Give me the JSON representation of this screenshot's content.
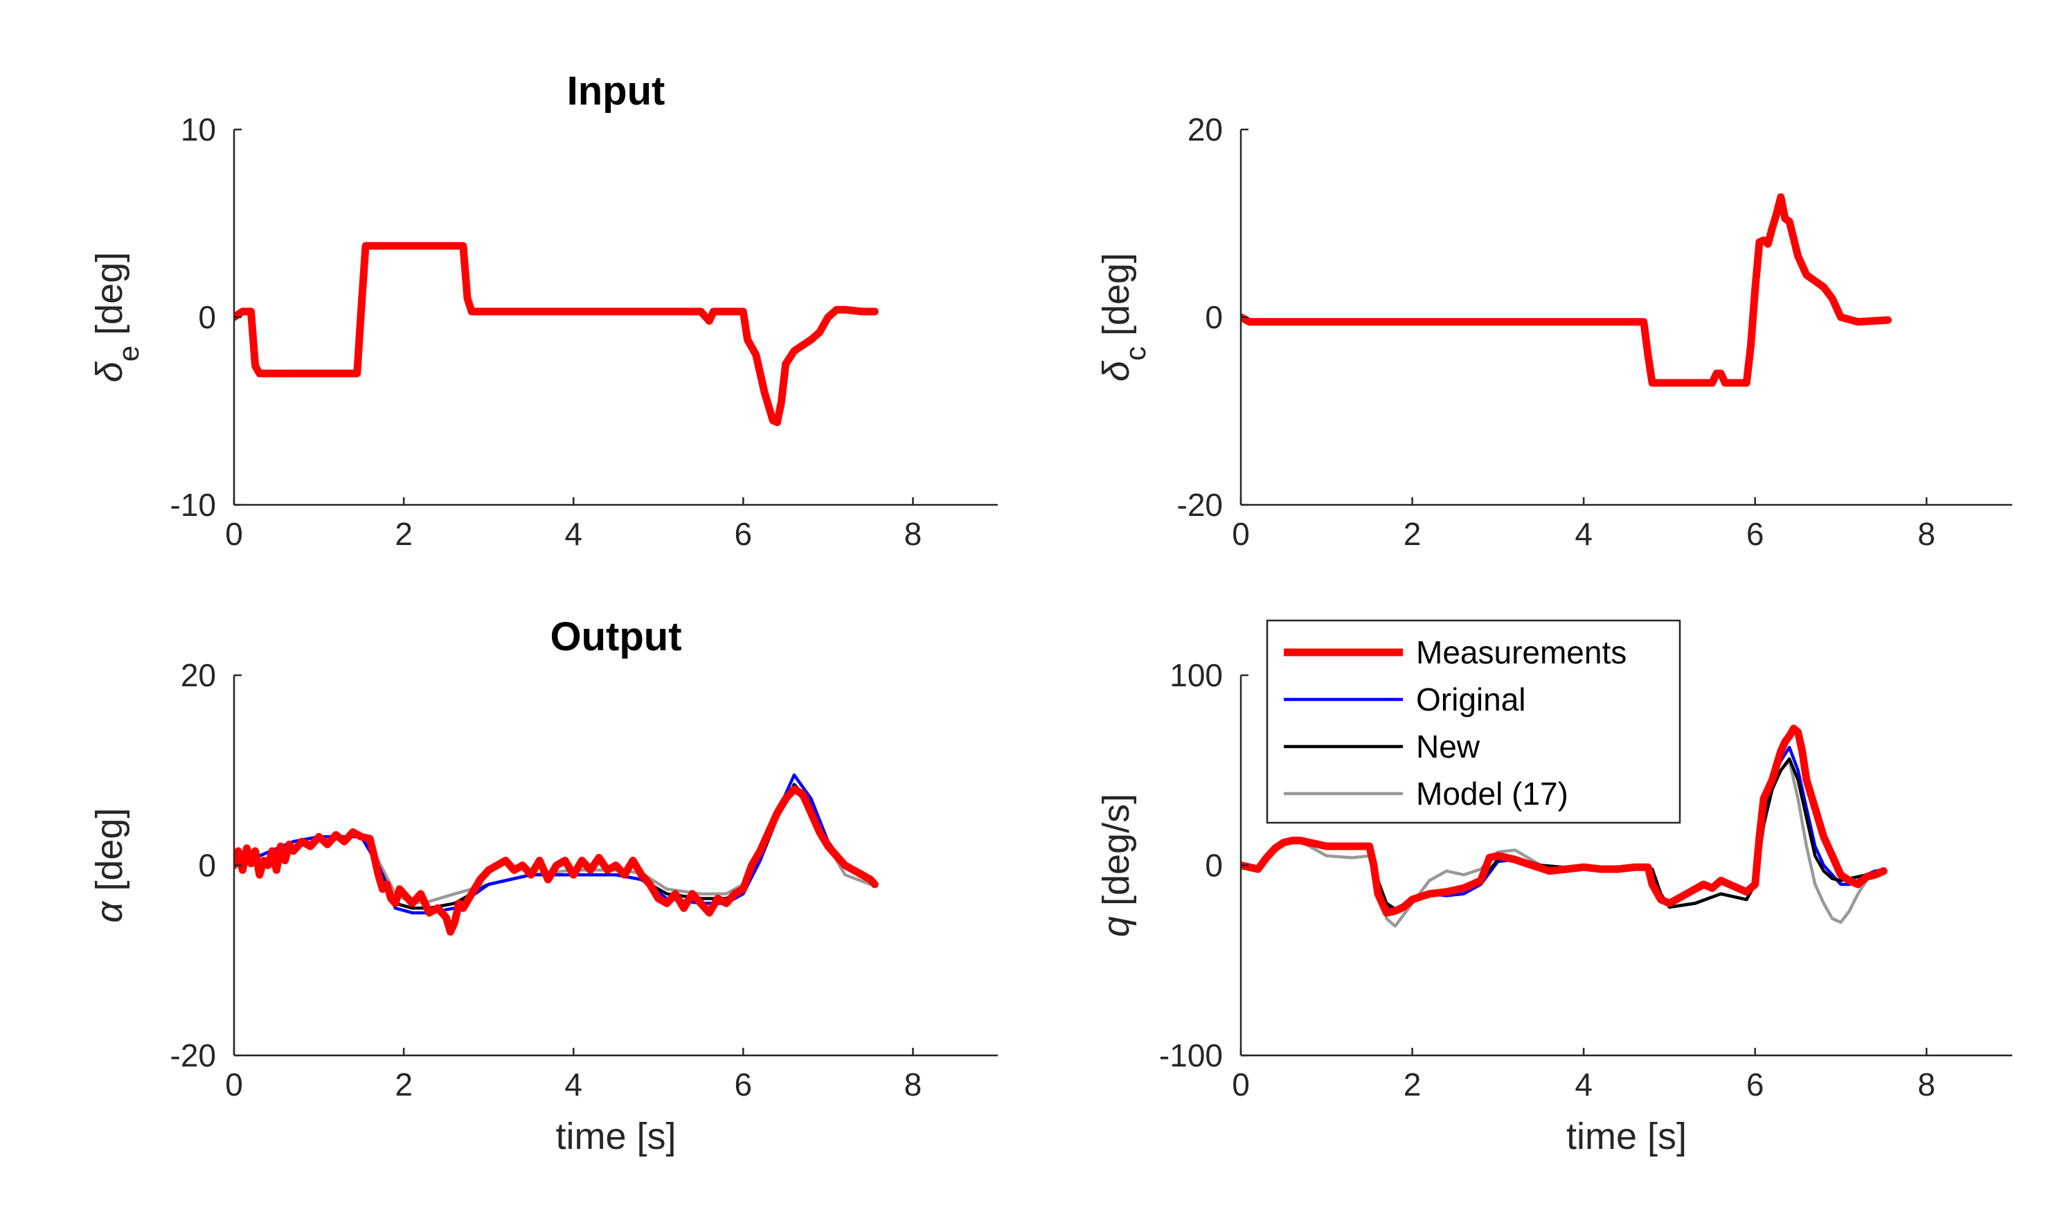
{
  "figure": {
    "xlabel": "time [s]",
    "legend": {
      "placement": "top-left of bottom-right panel",
      "entries": [
        {
          "name": "Measurements",
          "color": "#ff0000",
          "weight": "thick"
        },
        {
          "name": "Original",
          "color": "#0000ff",
          "weight": "thin"
        },
        {
          "name": "New",
          "color": "#000000",
          "weight": "thin"
        },
        {
          "name": "Model (17)",
          "color": "#999999",
          "weight": "thin"
        }
      ]
    }
  },
  "chart_data": [
    {
      "id": "de",
      "type": "line",
      "title": "Input",
      "ylabel_symbol": "δ",
      "ylabel_sub": "e",
      "ylabel_unit": " [deg]",
      "xlabel": "",
      "xlim": [
        0,
        9
      ],
      "ylim": [
        -10,
        10
      ],
      "xticks": [
        0,
        2,
        4,
        6,
        8
      ],
      "yticks": [
        -10,
        0,
        10
      ],
      "xtick_labels": [
        "0",
        "2",
        "4",
        "6",
        "8"
      ],
      "ytick_labels": [
        "-10",
        "0",
        "10"
      ],
      "series": [
        {
          "name": "Measurements",
          "color": "#ff0000",
          "weight": "thick",
          "x": [
            0,
            0.1,
            0.2,
            0.25,
            0.3,
            1.0,
            1.45,
            1.5,
            1.55,
            2.0,
            2.7,
            2.75,
            2.8,
            3.5,
            4.5,
            5.5,
            5.6,
            5.65,
            5.7,
            6.0,
            6.05,
            6.15,
            6.25,
            6.35,
            6.4,
            6.45,
            6.5,
            6.6,
            6.8,
            6.9,
            7.0,
            7.1,
            7.2,
            7.4,
            7.55
          ],
          "y": [
            0,
            0.3,
            0.3,
            -2.6,
            -3.0,
            -3.0,
            -3.0,
            0.5,
            3.8,
            3.8,
            3.8,
            1.0,
            0.3,
            0.3,
            0.3,
            0.3,
            -0.2,
            0.3,
            0.3,
            0.3,
            -1.2,
            -2.0,
            -4.0,
            -5.5,
            -5.6,
            -4.5,
            -2.5,
            -1.8,
            -1.2,
            -0.8,
            0.0,
            0.4,
            0.4,
            0.3,
            0.3
          ]
        }
      ]
    },
    {
      "id": "dc",
      "type": "line",
      "title": "",
      "ylabel_symbol": "δ",
      "ylabel_sub": "c",
      "ylabel_unit": " [deg]",
      "xlabel": "",
      "xlim": [
        0,
        9
      ],
      "ylim": [
        -20,
        20
      ],
      "xticks": [
        0,
        2,
        4,
        6,
        8
      ],
      "yticks": [
        -20,
        0,
        20
      ],
      "xtick_labels": [
        "0",
        "2",
        "4",
        "6",
        "8"
      ],
      "ytick_labels": [
        "-20",
        "0",
        "20"
      ],
      "series": [
        {
          "name": "Measurements",
          "color": "#ff0000",
          "weight": "thick",
          "x": [
            0,
            0.1,
            1.0,
            2.0,
            3.0,
            4.0,
            4.7,
            4.75,
            4.8,
            5.0,
            5.5,
            5.55,
            5.6,
            5.65,
            5.7,
            5.9,
            5.95,
            6.0,
            6.05,
            6.1,
            6.15,
            6.2,
            6.25,
            6.3,
            6.35,
            6.4,
            6.5,
            6.6,
            6.8,
            6.9,
            7.0,
            7.2,
            7.55
          ],
          "y": [
            0,
            -0.5,
            -0.5,
            -0.5,
            -0.5,
            -0.5,
            -0.5,
            -4.0,
            -7.0,
            -7.0,
            -7.0,
            -6.0,
            -6.0,
            -7.0,
            -7.0,
            -7.0,
            -3.0,
            3.0,
            8.0,
            8.2,
            7.8,
            9.5,
            11.0,
            12.8,
            10.5,
            10.2,
            6.5,
            4.5,
            3.2,
            2.0,
            0.0,
            -0.5,
            -0.3
          ]
        }
      ]
    },
    {
      "id": "alpha",
      "type": "line",
      "title": "Output",
      "ylabel_symbol": "α",
      "ylabel_sub": "",
      "ylabel_unit": " [deg]",
      "xlabel": "time [s]",
      "xlim": [
        0,
        9
      ],
      "ylim": [
        -20,
        20
      ],
      "xticks": [
        0,
        2,
        4,
        6,
        8
      ],
      "yticks": [
        -20,
        0,
        20
      ],
      "xtick_labels": [
        "0",
        "2",
        "4",
        "6",
        "8"
      ],
      "ytick_labels": [
        "-20",
        "0",
        "20"
      ],
      "series": [
        {
          "name": "Model (17)",
          "color": "#999999",
          "weight": "thin",
          "x": [
            0,
            0.3,
            0.7,
            1.0,
            1.5,
            1.7,
            1.9,
            2.1,
            2.3,
            2.6,
            3.0,
            3.5,
            4.0,
            4.5,
            4.8,
            5.1,
            5.5,
            5.8,
            6.0,
            6.2,
            6.4,
            6.6,
            6.8,
            7.0,
            7.2,
            7.5
          ],
          "y": [
            0,
            1.0,
            2.5,
            3.0,
            3.0,
            0.5,
            -3.0,
            -4.0,
            -3.8,
            -3.0,
            -2.0,
            -1.0,
            -0.5,
            -0.5,
            -0.8,
            -2.5,
            -3.0,
            -3.0,
            -2.0,
            1.0,
            5.0,
            8.0,
            6.0,
            2.0,
            -1.0,
            -2.0
          ]
        },
        {
          "name": "New",
          "color": "#000000",
          "weight": "thin",
          "x": [
            0,
            0.3,
            0.7,
            1.0,
            1.5,
            1.7,
            1.9,
            2.1,
            2.3,
            2.6,
            3.0,
            3.5,
            4.0,
            4.5,
            4.8,
            5.1,
            5.5,
            5.8,
            6.0,
            6.2,
            6.4,
            6.6,
            6.8,
            7.0,
            7.2,
            7.5
          ],
          "y": [
            0,
            1.0,
            2.5,
            3.0,
            3.0,
            0.0,
            -4.0,
            -4.5,
            -4.5,
            -4.0,
            -2.0,
            -1.0,
            -1.0,
            -1.0,
            -1.5,
            -3.0,
            -3.5,
            -3.5,
            -2.5,
            0.5,
            5.0,
            8.5,
            6.5,
            2.5,
            0.0,
            -1.5
          ]
        },
        {
          "name": "Original",
          "color": "#0000ff",
          "weight": "thin",
          "x": [
            0,
            0.3,
            0.7,
            1.0,
            1.5,
            1.7,
            1.9,
            2.1,
            2.3,
            2.6,
            3.0,
            3.5,
            4.0,
            4.5,
            4.8,
            5.1,
            5.5,
            5.8,
            6.0,
            6.2,
            6.4,
            6.6,
            6.8,
            7.0,
            7.2,
            7.5
          ],
          "y": [
            0,
            1.0,
            2.5,
            3.0,
            3.0,
            0.0,
            -4.5,
            -5.0,
            -5.0,
            -4.5,
            -2.0,
            -1.0,
            -1.0,
            -1.0,
            -1.5,
            -3.5,
            -4.0,
            -4.0,
            -3.0,
            0.5,
            5.5,
            9.5,
            7.0,
            2.5,
            0.0,
            -1.5
          ]
        },
        {
          "name": "Measurements",
          "color": "#ff0000",
          "weight": "thick",
          "x": [
            0,
            0.05,
            0.1,
            0.15,
            0.2,
            0.25,
            0.3,
            0.35,
            0.4,
            0.45,
            0.5,
            0.55,
            0.6,
            0.65,
            0.7,
            0.8,
            0.9,
            1.0,
            1.1,
            1.2,
            1.3,
            1.4,
            1.5,
            1.6,
            1.65,
            1.7,
            1.75,
            1.8,
            1.85,
            1.9,
            1.95,
            2.0,
            2.1,
            2.2,
            2.3,
            2.4,
            2.5,
            2.55,
            2.6,
            2.65,
            2.7,
            2.8,
            2.9,
            3.0,
            3.1,
            3.2,
            3.3,
            3.4,
            3.5,
            3.6,
            3.7,
            3.8,
            3.9,
            4.0,
            4.1,
            4.2,
            4.3,
            4.4,
            4.5,
            4.6,
            4.7,
            4.8,
            4.9,
            5.0,
            5.1,
            5.2,
            5.3,
            5.4,
            5.5,
            5.6,
            5.7,
            5.8,
            5.9,
            6.0,
            6.1,
            6.2,
            6.3,
            6.4,
            6.5,
            6.6,
            6.7,
            6.8,
            6.9,
            7.0,
            7.1,
            7.2,
            7.3,
            7.4,
            7.5,
            7.55
          ],
          "y": [
            0,
            1.5,
            -0.5,
            1.8,
            0.2,
            1.5,
            -1.0,
            0.5,
            0.0,
            1.5,
            -0.5,
            2.0,
            0.5,
            2.2,
            1.5,
            2.5,
            2.0,
            3.0,
            2.2,
            3.2,
            2.5,
            3.5,
            3.0,
            2.8,
            1.0,
            -1.0,
            -2.5,
            -2.0,
            -3.5,
            -4.0,
            -2.5,
            -3.0,
            -4.0,
            -3.0,
            -5.0,
            -4.5,
            -5.5,
            -7.0,
            -6.0,
            -4.0,
            -4.5,
            -3.0,
            -1.5,
            -0.5,
            0.0,
            0.5,
            -0.5,
            0.0,
            -1.0,
            0.5,
            -1.5,
            0.0,
            0.5,
            -1.0,
            0.5,
            -0.5,
            0.8,
            -0.5,
            0.0,
            -1.0,
            0.5,
            -1.0,
            -2.0,
            -3.5,
            -4.0,
            -3.0,
            -4.5,
            -3.0,
            -4.0,
            -5.0,
            -3.5,
            -4.0,
            -3.0,
            -2.5,
            0.0,
            1.5,
            3.5,
            5.5,
            7.0,
            8.0,
            7.5,
            5.5,
            3.5,
            2.0,
            1.0,
            0.0,
            -0.5,
            -1.0,
            -1.5,
            -2.0
          ]
        }
      ]
    },
    {
      "id": "q",
      "type": "line",
      "title": "",
      "ylabel_symbol": "q",
      "ylabel_sub": "",
      "ylabel_unit": " [deg/s]",
      "xlabel": "time [s]",
      "xlim": [
        0,
        9
      ],
      "ylim": [
        -100,
        100
      ],
      "xticks": [
        0,
        2,
        4,
        6,
        8
      ],
      "yticks": [
        -100,
        0,
        100
      ],
      "xtick_labels": [
        "0",
        "2",
        "4",
        "6",
        "8"
      ],
      "ytick_labels": [
        "-100",
        "0",
        "100"
      ],
      "series": [
        {
          "name": "Model (17)",
          "color": "#999999",
          "weight": "thin",
          "x": [
            0,
            0.2,
            0.4,
            0.6,
            0.8,
            1.0,
            1.3,
            1.5,
            1.6,
            1.7,
            1.8,
            2.0,
            2.2,
            2.4,
            2.6,
            2.8,
            3.0,
            3.2,
            3.5,
            4.0,
            4.5,
            4.8,
            4.9,
            5.0,
            5.3,
            5.6,
            5.9,
            6.0,
            6.1,
            6.2,
            6.3,
            6.4,
            6.5,
            6.6,
            6.7,
            6.8,
            6.9,
            7.0,
            7.1,
            7.2,
            7.3,
            7.4,
            7.5
          ],
          "y": [
            0,
            -2,
            8,
            14,
            10,
            5,
            4,
            5,
            -10,
            -28,
            -32,
            -20,
            -8,
            -3,
            -5,
            -2,
            7,
            8,
            0,
            -2,
            -2,
            -2,
            -15,
            -22,
            -20,
            -15,
            -18,
            -10,
            20,
            40,
            50,
            55,
            35,
            10,
            -10,
            -20,
            -28,
            -30,
            -24,
            -15,
            -8,
            -3,
            -2
          ]
        },
        {
          "name": "Original",
          "color": "#0000ff",
          "weight": "thin",
          "x": [
            0,
            0.2,
            0.4,
            0.6,
            0.8,
            1.0,
            1.3,
            1.5,
            1.6,
            1.7,
            1.8,
            2.0,
            2.2,
            2.4,
            2.6,
            2.8,
            3.0,
            3.2,
            3.5,
            4.0,
            4.5,
            4.8,
            4.9,
            5.0,
            5.3,
            5.6,
            5.9,
            6.0,
            6.1,
            6.2,
            6.3,
            6.4,
            6.5,
            6.6,
            6.7,
            6.8,
            6.9,
            7.0,
            7.1,
            7.2,
            7.3,
            7.4,
            7.5
          ],
          "y": [
            0,
            -2,
            10,
            14,
            12,
            10,
            10,
            10,
            -8,
            -22,
            -25,
            -18,
            -15,
            -16,
            -15,
            -10,
            2,
            3,
            0,
            -2,
            -2,
            -2,
            -15,
            -22,
            -20,
            -15,
            -18,
            -10,
            25,
            45,
            55,
            62,
            50,
            30,
            10,
            0,
            -5,
            -10,
            -10,
            -8,
            -5,
            -3,
            -3
          ]
        },
        {
          "name": "New",
          "color": "#000000",
          "weight": "thin",
          "x": [
            0,
            0.2,
            0.4,
            0.6,
            0.8,
            1.0,
            1.3,
            1.5,
            1.6,
            1.7,
            1.8,
            2.0,
            2.2,
            2.4,
            2.6,
            2.8,
            3.0,
            3.2,
            3.5,
            4.0,
            4.5,
            4.8,
            4.9,
            5.0,
            5.3,
            5.6,
            5.9,
            6.0,
            6.1,
            6.2,
            6.3,
            6.4,
            6.5,
            6.6,
            6.7,
            6.8,
            6.9,
            7.0,
            7.1,
            7.2,
            7.3,
            7.4,
            7.5
          ],
          "y": [
            0,
            -2,
            10,
            14,
            12,
            10,
            10,
            10,
            -8,
            -20,
            -23,
            -18,
            -15,
            -14,
            -13,
            -8,
            3,
            4,
            0,
            -2,
            -2,
            -2,
            -15,
            -22,
            -20,
            -15,
            -18,
            -10,
            22,
            40,
            50,
            56,
            45,
            25,
            5,
            -3,
            -7,
            -8,
            -7,
            -6,
            -5,
            -4,
            -3
          ]
        },
        {
          "name": "Measurements",
          "color": "#ff0000",
          "weight": "thick",
          "x": [
            0,
            0.1,
            0.2,
            0.3,
            0.4,
            0.5,
            0.6,
            0.7,
            0.8,
            0.9,
            1.0,
            1.2,
            1.4,
            1.5,
            1.55,
            1.6,
            1.7,
            1.8,
            1.9,
            2.0,
            2.2,
            2.4,
            2.6,
            2.7,
            2.8,
            2.9,
            3.0,
            3.2,
            3.4,
            3.6,
            3.8,
            4.0,
            4.2,
            4.4,
            4.6,
            4.75,
            4.8,
            4.9,
            5.0,
            5.2,
            5.4,
            5.5,
            5.6,
            5.7,
            5.8,
            5.9,
            6.0,
            6.05,
            6.1,
            6.2,
            6.3,
            6.35,
            6.4,
            6.45,
            6.5,
            6.55,
            6.6,
            6.7,
            6.8,
            6.9,
            7.0,
            7.1,
            7.2,
            7.3,
            7.4,
            7.5
          ],
          "y": [
            0,
            -1,
            -2,
            4,
            9,
            12,
            13,
            13,
            12,
            11,
            10,
            10,
            10,
            10,
            0,
            -15,
            -25,
            -24,
            -22,
            -18,
            -15,
            -14,
            -12,
            -10,
            -8,
            4,
            5,
            3,
            0,
            -3,
            -2,
            -1,
            -2,
            -2,
            -1,
            -1,
            -10,
            -18,
            -20,
            -15,
            -10,
            -12,
            -8,
            -10,
            -12,
            -14,
            -10,
            15,
            35,
            45,
            60,
            65,
            68,
            72,
            70,
            60,
            45,
            30,
            15,
            5,
            -5,
            -8,
            -10,
            -6,
            -5,
            -3
          ]
        }
      ]
    }
  ]
}
